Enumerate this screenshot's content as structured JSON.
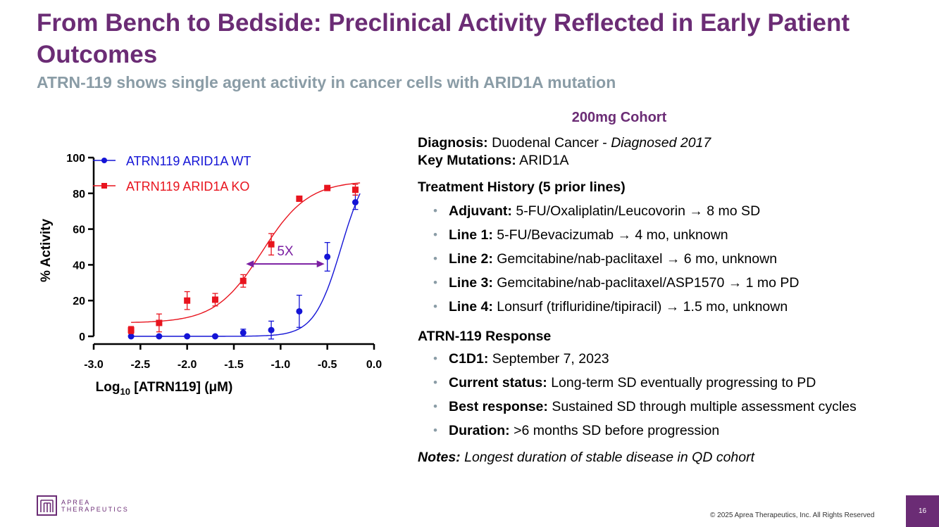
{
  "slide": {
    "title": "From Bench to Bedside: Preclinical Activity Reflected in Early Patient Outcomes",
    "subtitle": "ATRN-119 shows single agent activity in cancer cells with ARID1A mutation",
    "cohort_heading": "200mg Cohort",
    "diagnosis_label": "Diagnosis:",
    "diagnosis_value": "Duodenal Cancer - ",
    "diagnosis_date": "Diagnosed 2017",
    "mutations_label": "Key Mutations:",
    "mutations_value": "ARID1A",
    "treatment_heading": "Treatment History (5 prior lines)",
    "treatments": [
      {
        "label": "Adjuvant:",
        "text": "5-FU/Oxaliplatin/Leucovorin → 8 mo SD"
      },
      {
        "label": "Line 1:",
        "text": "5-FU/Bevacizumab → 4 mo, unknown"
      },
      {
        "label": "Line 2:",
        "text": "Gemcitabine/nab-paclitaxel → 6 mo, unknown"
      },
      {
        "label": "Line 3:",
        "text": "Gemcitabine/nab-paclitaxel/ASP1570 → 1 mo PD"
      },
      {
        "label": "Line 4:",
        "text": "Lonsurf (trifluridine/tipiracil) → 1.5 mo, unknown"
      }
    ],
    "response_heading": "ATRN-119 Response",
    "responses": [
      {
        "label": "C1D1:",
        "text": "September 7, 2023"
      },
      {
        "label": "Current status:",
        "text": "Long-term SD eventually progressing to PD"
      },
      {
        "label": "Best response:",
        "text": "Sustained SD through multiple assessment cycles"
      },
      {
        "label": "Duration:",
        "text": ">6 months SD before progression"
      }
    ],
    "notes_label": "Notes:",
    "notes_text": "Longest duration of stable disease in QD cohort",
    "logo_line1": "APREA",
    "logo_line2": "THERAPEUTICS",
    "copyright": "© 2025 Aprea Therapeutics, Inc. All Rights Reserved",
    "page_number": "16"
  },
  "colors": {
    "brand": "#6b2c75",
    "subtitle": "#8a9ca6",
    "wt": "#1414d6",
    "ko": "#e8141e"
  },
  "chart_data": {
    "type": "scatter",
    "title": "",
    "xlabel": "Log",
    "xlabel_sub": "10",
    "xlabel_rest": " [ATRN119] (μM)",
    "ylabel": "% Activity",
    "xlim": [
      -3.0,
      0.0
    ],
    "ylim": [
      0,
      100
    ],
    "x_ticks": [
      -3.0,
      -2.5,
      -2.0,
      -1.5,
      -1.0,
      -0.5,
      0.0
    ],
    "x_tick_labels": [
      "-3.0",
      "-2.5",
      "-2.0",
      "-1.5",
      "-1.0",
      "-0.5",
      "0.0"
    ],
    "y_ticks": [
      0,
      20,
      40,
      60,
      80,
      100
    ],
    "y_tick_labels": [
      "0",
      "20",
      "40",
      "60",
      "80",
      "100"
    ],
    "legend_position": "top-left",
    "annotation": "5X",
    "series": [
      {
        "name": "ATRN119 ARID1A WT",
        "marker": "circle",
        "color": "#1414d6",
        "x": [
          -2.6,
          -2.3,
          -2.0,
          -1.7,
          -1.4,
          -1.1,
          -0.8,
          -0.5,
          -0.2
        ],
        "y": [
          0,
          0,
          0,
          0,
          2,
          3.5,
          14,
          44.5,
          75
        ],
        "err": [
          0,
          0,
          0,
          0,
          2,
          5,
          9,
          8,
          4
        ],
        "fit": {
          "bottom": 0,
          "top": 100,
          "log_ec50": -0.35,
          "hill": 3.0
        }
      },
      {
        "name": "ATRN119 ARID1A KO",
        "marker": "square",
        "color": "#e8141e",
        "x": [
          -2.6,
          -2.3,
          -2.0,
          -1.7,
          -1.4,
          -1.1,
          -0.8,
          -0.5,
          -0.2
        ],
        "y": [
          3.5,
          7.5,
          20,
          20.5,
          31,
          51.5,
          77,
          83,
          82
        ],
        "err": [
          2,
          5,
          5,
          3.5,
          3.5,
          6,
          0,
          1,
          3
        ],
        "fit": {
          "bottom": 7.5,
          "top": 87,
          "log_ec50": -1.2,
          "hill": 1.75
        }
      }
    ]
  }
}
